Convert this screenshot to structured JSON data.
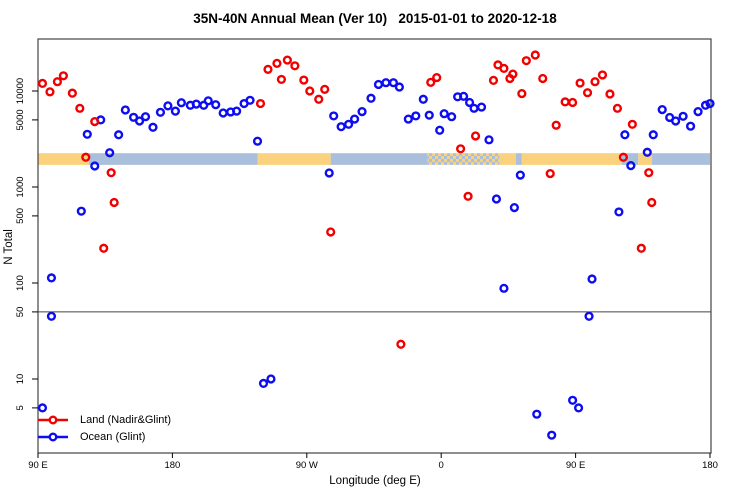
{
  "chart_data": {
    "type": "scatter",
    "title": "35N-40N Annual Mean (Ver 10)   2015-01-01 to 2020-12-18",
    "xlabel": "Longitude (deg E)",
    "ylabel": "N Total",
    "x_axis": {
      "range_deg": [
        90,
        540
      ],
      "ticks": [
        {
          "pos": 90,
          "label": "90 E"
        },
        {
          "pos": 180,
          "label": "180"
        },
        {
          "pos": 270,
          "label": "90 W"
        },
        {
          "pos": 360,
          "label": "0"
        },
        {
          "pos": 450,
          "label": "90 E"
        },
        {
          "pos": 540,
          "label": "180"
        }
      ]
    },
    "y_axis": {
      "scale": "log",
      "range": [
        1.7,
        34000
      ],
      "ticks": [
        {
          "value": 5,
          "label": "5"
        },
        {
          "value": 10,
          "label": "10"
        },
        {
          "value": 50,
          "label": "50"
        },
        {
          "value": 100,
          "label": "100"
        },
        {
          "value": 500,
          "label": "500"
        },
        {
          "value": 1000,
          "label": "1000"
        },
        {
          "value": 5000,
          "label": "5000"
        },
        {
          "value": 10000,
          "label": "10000"
        }
      ]
    },
    "ref_line_y": 50,
    "coverage_band": {
      "value_range": [
        1700,
        2250
      ],
      "segments": [
        {
          "from": 90,
          "to": 124,
          "surface": "land"
        },
        {
          "from": 124,
          "to": 237,
          "surface": "ocean"
        },
        {
          "from": 237,
          "to": 286,
          "surface": "land"
        },
        {
          "from": 286,
          "to": 351,
          "surface": "ocean"
        },
        {
          "from": 351,
          "to": 399,
          "surface": "mixed"
        },
        {
          "from": 399,
          "to": 410,
          "surface": "land"
        },
        {
          "from": 410,
          "to": 414,
          "surface": "ocean"
        },
        {
          "from": 414,
          "to": 481,
          "surface": "land"
        },
        {
          "from": 481,
          "to": 492,
          "surface": "ocean"
        },
        {
          "from": 492,
          "to": 501,
          "surface": "land"
        },
        {
          "from": 501,
          "to": 540,
          "surface": "ocean"
        }
      ]
    },
    "colors": {
      "land_band": "#FAD27E",
      "ocean_band": "#AABFDC",
      "axis": "#444444"
    },
    "series": [
      {
        "id": "land",
        "name": "Land (Nadir&Glint)",
        "color": "#F20000",
        "points": [
          [
            93,
            12000
          ],
          [
            98,
            9800
          ],
          [
            103,
            12500
          ],
          [
            107,
            14400
          ],
          [
            113,
            9500
          ],
          [
            118,
            6600
          ],
          [
            122,
            2040
          ],
          [
            128,
            4800
          ],
          [
            134,
            230
          ],
          [
            139,
            1410
          ],
          [
            141,
            690
          ],
          [
            239,
            7400
          ],
          [
            244,
            16800
          ],
          [
            250,
            19400
          ],
          [
            253,
            13200
          ],
          [
            257,
            21000
          ],
          [
            262,
            18300
          ],
          [
            268,
            13000
          ],
          [
            272,
            10000
          ],
          [
            278,
            8200
          ],
          [
            282,
            10400
          ],
          [
            286,
            340
          ],
          [
            333,
            23
          ],
          [
            353,
            12300
          ],
          [
            357,
            13800
          ],
          [
            373,
            2500
          ],
          [
            378,
            800
          ],
          [
            383,
            3400
          ],
          [
            395,
            12900
          ],
          [
            398,
            18700
          ],
          [
            402,
            17200
          ],
          [
            406,
            13500
          ],
          [
            408,
            15000
          ],
          [
            414,
            9400
          ],
          [
            417,
            20700
          ],
          [
            423,
            23700
          ],
          [
            428,
            13500
          ],
          [
            433,
            1380
          ],
          [
            437,
            4400
          ],
          [
            443,
            7700
          ],
          [
            448,
            7600
          ],
          [
            453,
            12100
          ],
          [
            458,
            9600
          ],
          [
            463,
            12500
          ],
          [
            468,
            14700
          ],
          [
            473,
            9300
          ],
          [
            478,
            6600
          ],
          [
            482,
            2040
          ],
          [
            488,
            4500
          ],
          [
            494,
            230
          ],
          [
            499,
            1410
          ],
          [
            501,
            690
          ]
        ]
      },
      {
        "id": "ocean",
        "name": "Ocean (Glint)",
        "color": "#0D0DF2",
        "points": [
          [
            93,
            5
          ],
          [
            99,
            113
          ],
          [
            99,
            45
          ],
          [
            119,
            560
          ],
          [
            123,
            3540
          ],
          [
            128,
            1655
          ],
          [
            132,
            5000
          ],
          [
            138,
            2275
          ],
          [
            144,
            3500
          ],
          [
            148.5,
            6340
          ],
          [
            154,
            5320
          ],
          [
            158,
            4870
          ],
          [
            162,
            5400
          ],
          [
            167,
            4190
          ],
          [
            172,
            6000
          ],
          [
            177,
            7000
          ],
          [
            182,
            6170
          ],
          [
            186,
            7550
          ],
          [
            192,
            7100
          ],
          [
            196,
            7300
          ],
          [
            201,
            7100
          ],
          [
            204,
            7900
          ],
          [
            209,
            7200
          ],
          [
            214,
            5900
          ],
          [
            219,
            6050
          ],
          [
            223,
            6170
          ],
          [
            228,
            7400
          ],
          [
            232,
            8000
          ],
          [
            237,
            3000
          ],
          [
            241,
            9
          ],
          [
            246,
            10
          ],
          [
            285,
            1400
          ],
          [
            288,
            5500
          ],
          [
            293,
            4250
          ],
          [
            298,
            4500
          ],
          [
            302,
            5100
          ],
          [
            307,
            6100
          ],
          [
            313,
            8400
          ],
          [
            318,
            11700
          ],
          [
            323,
            12200
          ],
          [
            328,
            12200
          ],
          [
            332,
            11000
          ],
          [
            338,
            5100
          ],
          [
            343,
            5500
          ],
          [
            348,
            8200
          ],
          [
            352,
            5600
          ],
          [
            359,
            3900
          ],
          [
            362,
            5800
          ],
          [
            367,
            5400
          ],
          [
            371,
            8700
          ],
          [
            375,
            8800
          ],
          [
            379,
            7600
          ],
          [
            382,
            6600
          ],
          [
            387,
            6800
          ],
          [
            392,
            3100
          ],
          [
            397,
            750
          ],
          [
            402,
            88
          ],
          [
            409,
            610
          ],
          [
            413,
            1330
          ],
          [
            424,
            4.3
          ],
          [
            434,
            2.6
          ],
          [
            448,
            6
          ],
          [
            452,
            5
          ],
          [
            459,
            45
          ],
          [
            461,
            110
          ],
          [
            479,
            550
          ],
          [
            483,
            3500
          ],
          [
            487,
            1670
          ],
          [
            498,
            2300
          ],
          [
            502,
            3500
          ],
          [
            508,
            6400
          ],
          [
            513,
            5300
          ],
          [
            517,
            4870
          ],
          [
            522,
            5450
          ],
          [
            527,
            4300
          ],
          [
            532,
            6100
          ],
          [
            537,
            7100
          ],
          [
            540,
            7400
          ]
        ]
      }
    ],
    "legend_position": "bottom-left"
  }
}
